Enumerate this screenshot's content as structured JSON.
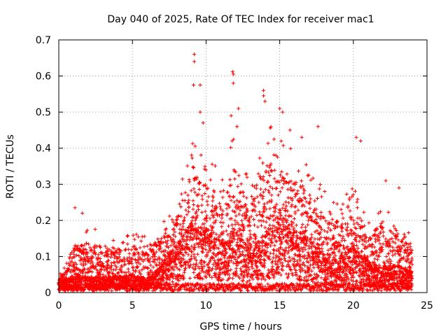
{
  "chart_data": {
    "type": "scatter",
    "title": "Day 040 of 2025, Rate Of TEC Index for receiver mac1",
    "xlabel": "GPS time / hours",
    "ylabel": "ROTI / TECUs",
    "xlim": [
      0,
      25
    ],
    "ylim": [
      0,
      0.7
    ],
    "x_ticks": [
      "0",
      "5",
      "10",
      "15",
      "20",
      "25"
    ],
    "y_ticks": [
      "0",
      "0.1",
      "0.2",
      "0.3",
      "0.4",
      "0.5",
      "0.6",
      "0.7"
    ],
    "grid": true,
    "marker": "plus",
    "color": "#ff0000",
    "x_range_of_points": [
      0,
      24
    ],
    "envelope": {
      "x": [
        0,
        1,
        2,
        3,
        4,
        5,
        6,
        7,
        8,
        9,
        10,
        11,
        12,
        13,
        14,
        15,
        16,
        17,
        18,
        19,
        20,
        21,
        22,
        23,
        24
      ],
      "typical_max": [
        0.04,
        0.17,
        0.18,
        0.17,
        0.16,
        0.17,
        0.16,
        0.2,
        0.26,
        0.42,
        0.38,
        0.34,
        0.45,
        0.3,
        0.48,
        0.43,
        0.4,
        0.35,
        0.33,
        0.25,
        0.3,
        0.2,
        0.25,
        0.2,
        0.18
      ],
      "median": [
        0.02,
        0.03,
        0.03,
        0.03,
        0.03,
        0.03,
        0.03,
        0.05,
        0.09,
        0.13,
        0.12,
        0.1,
        0.12,
        0.08,
        0.11,
        0.15,
        0.12,
        0.1,
        0.07,
        0.06,
        0.09,
        0.06,
        0.05,
        0.05,
        0.04
      ]
    },
    "notable_points": [
      {
        "x": 9.2,
        "y": 0.66
      },
      {
        "x": 9.2,
        "y": 0.64
      },
      {
        "x": 9.15,
        "y": 0.575
      },
      {
        "x": 9.6,
        "y": 0.575
      },
      {
        "x": 11.8,
        "y": 0.612
      },
      {
        "x": 11.85,
        "y": 0.605
      },
      {
        "x": 11.85,
        "y": 0.58
      },
      {
        "x": 13.9,
        "y": 0.56
      },
      {
        "x": 13.9,
        "y": 0.545
      },
      {
        "x": 14.0,
        "y": 0.53
      },
      {
        "x": 9.6,
        "y": 0.5
      },
      {
        "x": 12.2,
        "y": 0.51
      },
      {
        "x": 15.0,
        "y": 0.51
      },
      {
        "x": 15.2,
        "y": 0.5
      },
      {
        "x": 11.7,
        "y": 0.49
      },
      {
        "x": 9.8,
        "y": 0.47
      },
      {
        "x": 17.6,
        "y": 0.46
      },
      {
        "x": 15.7,
        "y": 0.45
      },
      {
        "x": 20.2,
        "y": 0.43
      },
      {
        "x": 16.5,
        "y": 0.43
      },
      {
        "x": 20.5,
        "y": 0.42
      },
      {
        "x": 12.1,
        "y": 0.46
      },
      {
        "x": 1.1,
        "y": 0.235
      },
      {
        "x": 1.6,
        "y": 0.22
      },
      {
        "x": 22.2,
        "y": 0.31
      },
      {
        "x": 23.1,
        "y": 0.29
      }
    ]
  }
}
